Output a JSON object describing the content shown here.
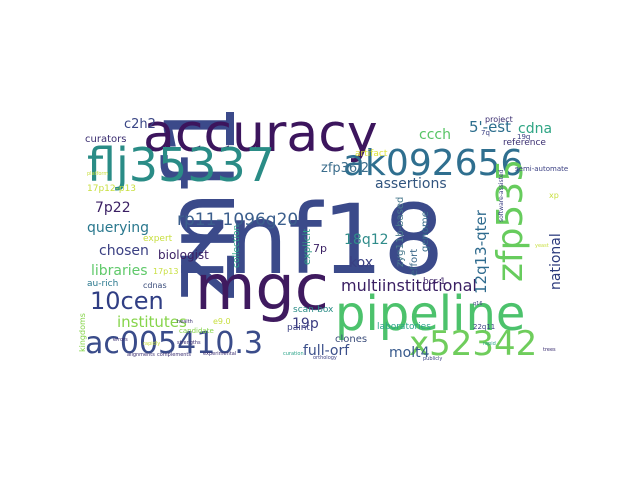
{
  "word_cloud": {
    "words": [
      {
        "text": "znf18",
        "color": "#3b4a8a"
      },
      {
        "text": "mgc",
        "color": "#3f1a5f"
      },
      {
        "text": "accuracy",
        "color": "#3c155d"
      },
      {
        "text": "flj35337",
        "color": "#2a8c86"
      },
      {
        "text": "pipeline",
        "color": "#4cc26c"
      },
      {
        "text": "ak092656",
        "color": "#2f6f8f"
      },
      {
        "text": "x52342",
        "color": "#6fcd5c"
      },
      {
        "text": "zfp535",
        "color": "#67cc5d"
      },
      {
        "text": "ac005410.3",
        "color": "#3a4c8a"
      },
      {
        "text": "10cen",
        "color": "#303e84"
      },
      {
        "text": "rp11-1096g20",
        "color": "#3c5f8d"
      },
      {
        "text": "multiinstitutional",
        "color": "#3a1f63"
      },
      {
        "text": "institutes",
        "color": "#86d44a"
      },
      {
        "text": "libraries",
        "color": "#5fc96a"
      },
      {
        "text": "querying",
        "color": "#2a788e"
      },
      {
        "text": "chosen",
        "color": "#3a3f82"
      },
      {
        "text": "assertions",
        "color": "#32557f"
      },
      {
        "text": "zfp36l2",
        "color": "#3b6d8c"
      },
      {
        "text": "18q12",
        "color": "#2f8c8a"
      },
      {
        "text": "12q13-qter",
        "color": "#2f6b8e"
      },
      {
        "text": "national",
        "color": "#2b3a7c"
      },
      {
        "text": "kox",
        "color": "#3a3f82"
      },
      {
        "text": "full-orf",
        "color": "#3b4f8a"
      },
      {
        "text": "molt4",
        "color": "#37598c"
      },
      {
        "text": "19p",
        "color": "#3a3b80"
      },
      {
        "text": "7p22",
        "color": "#3a1f63"
      },
      {
        "text": "5'-est",
        "color": "#2c6e8d"
      },
      {
        "text": "cdna",
        "color": "#2fa584"
      },
      {
        "text": "ccch",
        "color": "#57c465"
      },
      {
        "text": "c2h2",
        "color": "#3a4685"
      },
      {
        "text": "biologist",
        "color": "#3a1f63"
      },
      {
        "text": "artifact",
        "color": "#e0e33c"
      },
      {
        "text": "curators",
        "color": "#3a2d70"
      },
      {
        "text": "expert",
        "color": "#c8df3f"
      },
      {
        "text": "explicit",
        "color": "#2e9c86"
      },
      {
        "text": "genome",
        "color": "#3b6f8c"
      },
      {
        "text": "effort",
        "color": "#3e6a8a"
      },
      {
        "text": "zyg11b-based",
        "color": "#4b7b8e"
      },
      {
        "text": "clones",
        "color": "#3a4c7a"
      },
      {
        "text": "paint",
        "color": "#3a3f82"
      },
      {
        "text": "laboratories",
        "color": "#2aa489"
      },
      {
        "text": "reference",
        "color": "#3a2d70"
      },
      {
        "text": "project",
        "color": "#3a2d70"
      },
      {
        "text": "semi-automated",
        "color": "#3a3f82"
      },
      {
        "text": "au-rich",
        "color": "#2a788e"
      },
      {
        "text": "cdnas",
        "color": "#3a4c7a"
      },
      {
        "text": "candidate",
        "color": "#86d44a"
      },
      {
        "text": "collection",
        "color": "#2aa489"
      },
      {
        "text": "scan-box",
        "color": "#2a8c86"
      },
      {
        "text": "bcr-1",
        "color": "#3a1f63"
      },
      {
        "text": "7p",
        "color": "#3a1f63"
      },
      {
        "text": "17p13",
        "color": "#c8df3f"
      },
      {
        "text": "17p12-p13",
        "color": "#c8df3f"
      },
      {
        "text": "kingdoms",
        "color": "#86d44a"
      },
      {
        "text": "e9.0",
        "color": "#c8df3f"
      },
      {
        "text": "xp",
        "color": "#c8df3f"
      },
      {
        "text": "19q",
        "color": "#3a3f82"
      },
      {
        "text": "7q",
        "color": "#3a3f82"
      },
      {
        "text": "22q11",
        "color": "#3a3f82"
      },
      {
        "text": "software-assisted",
        "color": "#3a3f82"
      },
      {
        "text": "strengths",
        "color": "#3a2d70"
      },
      {
        "text": "alignments",
        "color": "#3a2d70"
      },
      {
        "text": "complements",
        "color": "#3a2d70"
      },
      {
        "text": "orthology",
        "color": "#3a3f82"
      },
      {
        "text": "publicly",
        "color": "#3a3f82"
      },
      {
        "text": "experimental",
        "color": "#3a2d70"
      },
      {
        "text": "rapidly",
        "color": "#c8df3f"
      },
      {
        "text": "platform",
        "color": "#c8df3f"
      },
      {
        "text": "health",
        "color": "#3a2d70"
      },
      {
        "text": "errors",
        "color": "#3a2d70"
      },
      {
        "text": "q16",
        "color": "#3a3f82"
      },
      {
        "text": "yeast",
        "color": "#c8df3f"
      },
      {
        "text": "trees",
        "color": "#3a2d70"
      },
      {
        "text": "rapid",
        "color": "#2aa489"
      },
      {
        "text": "curation",
        "color": "#2aa489"
      }
    ]
  }
}
